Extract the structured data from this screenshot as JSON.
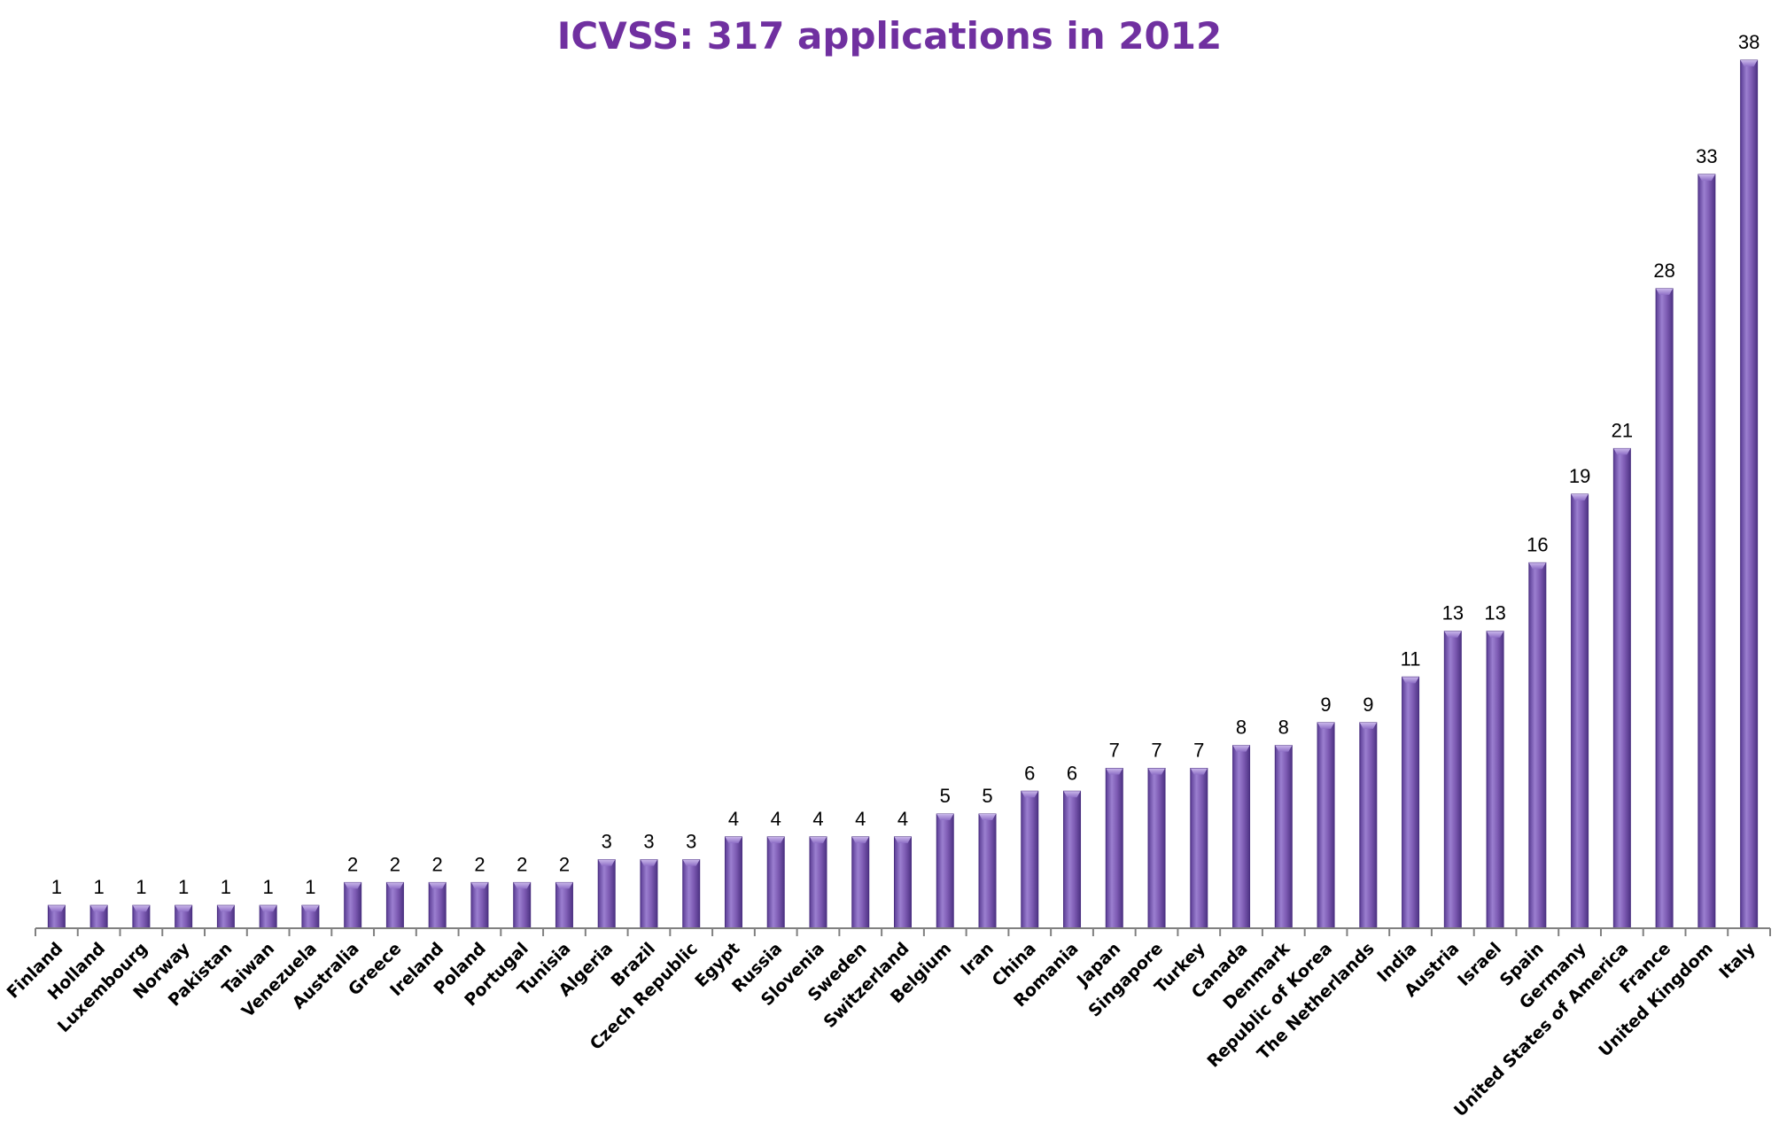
{
  "chart_data": {
    "type": "bar",
    "title": "ICVSS: 317 applications in 2012",
    "xlabel": "",
    "ylabel": "",
    "categories": [
      "Finland",
      "Holland",
      "Luxembourg",
      "Norway",
      "Pakistan",
      "Taiwan",
      "Venezuela",
      "Australia",
      "Greece",
      "Ireland",
      "Poland",
      "Portugal",
      "Tunisia",
      "Algeria",
      "Brazil",
      "Czech Republic",
      "Egypt",
      "Russia",
      "Slovenia",
      "Sweden",
      "Switzerland",
      "Belgium",
      "Iran",
      "China",
      "Romania",
      "Japan",
      "Singapore",
      "Turkey",
      "Canada",
      "Denmark",
      "Republic of Korea",
      "The Netherlands",
      "India",
      "Austria",
      "Israel",
      "Spain",
      "Germany",
      "United States of America",
      "France",
      "United Kingdom",
      "Italy"
    ],
    "values": [
      1,
      1,
      1,
      1,
      1,
      1,
      1,
      2,
      2,
      2,
      2,
      2,
      2,
      3,
      3,
      3,
      4,
      4,
      4,
      4,
      4,
      5,
      5,
      6,
      6,
      7,
      7,
      7,
      8,
      8,
      9,
      9,
      11,
      13,
      13,
      16,
      19,
      21,
      28,
      33,
      38
    ],
    "ylim": [
      0,
      38
    ],
    "data_labels": true,
    "grid": false,
    "legend": "none",
    "colors": {
      "bar_fill": "#7d5bb3",
      "bar_light": "#a98fd6",
      "bar_dark": "#4e3384",
      "title": "#7030a0",
      "axis": "#808080"
    }
  }
}
